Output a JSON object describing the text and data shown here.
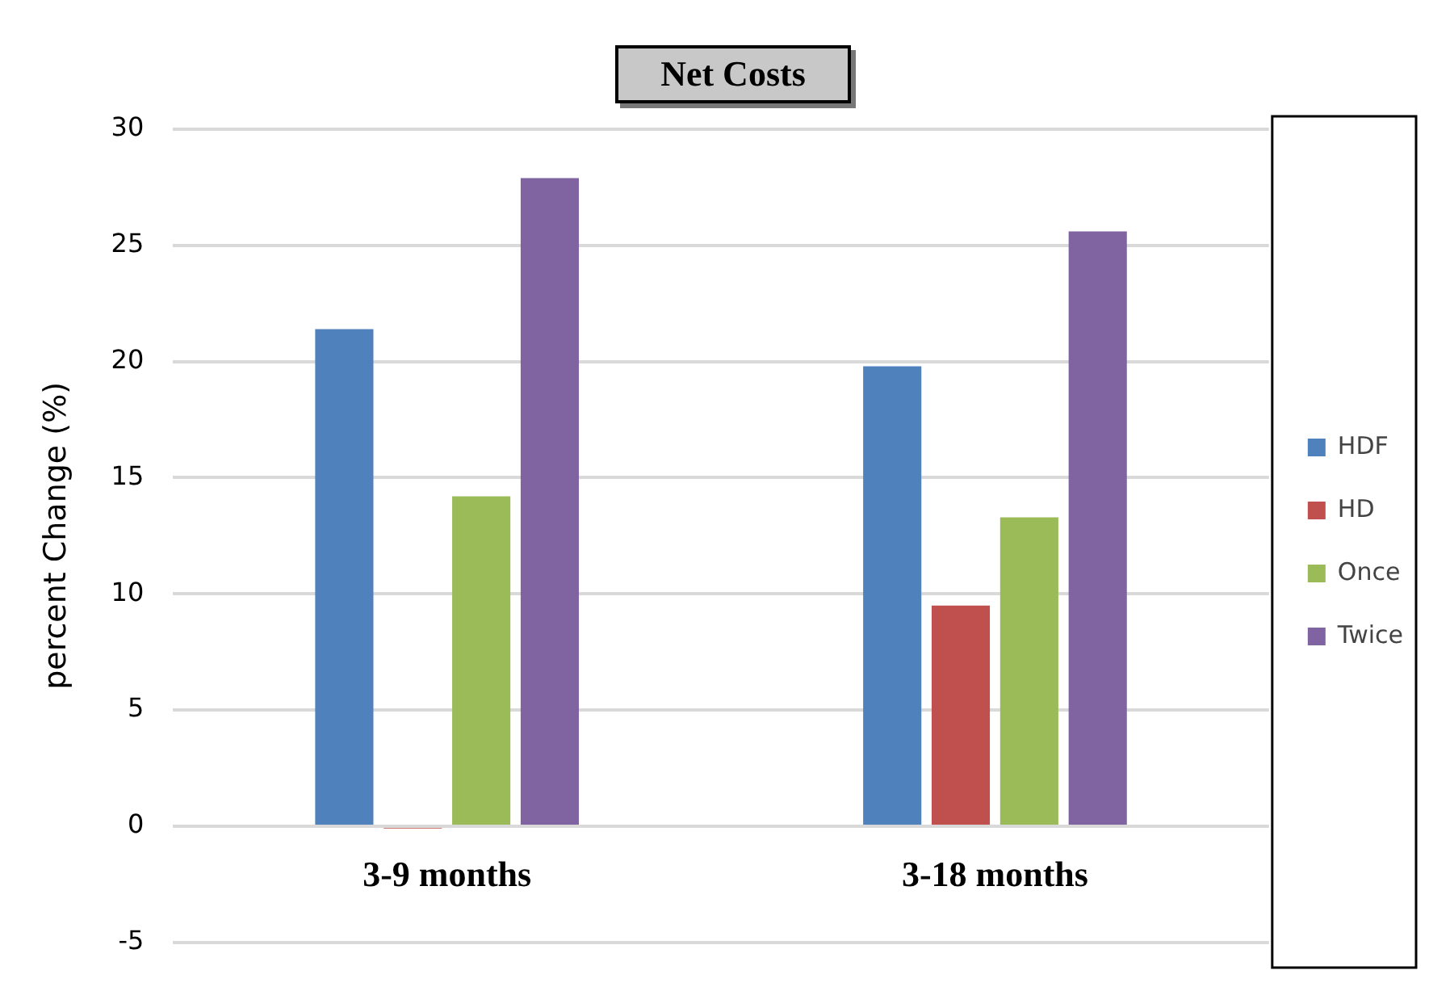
{
  "chart_data": {
    "type": "bar",
    "title": "Net  Costs",
    "ylabel": "percent Change (%)",
    "categories": [
      "3-9 months",
      "3-18 months"
    ],
    "series": [
      {
        "name": "HDF",
        "color": "#4f81bd",
        "values": [
          21.4,
          19.8
        ]
      },
      {
        "name": "HD",
        "color": "#c0504d",
        "values": [
          -0.1,
          9.5
        ]
      },
      {
        "name": "Once",
        "color": "#9bbb59",
        "values": [
          14.2,
          13.3
        ]
      },
      {
        "name": "Twice",
        "color": "#8064a2",
        "values": [
          27.9,
          25.6
        ]
      }
    ],
    "ylim": [
      -5,
      30
    ],
    "yticks": [
      -5,
      0,
      5,
      10,
      15,
      20,
      25,
      30
    ],
    "grid": "y",
    "legend": "right"
  }
}
